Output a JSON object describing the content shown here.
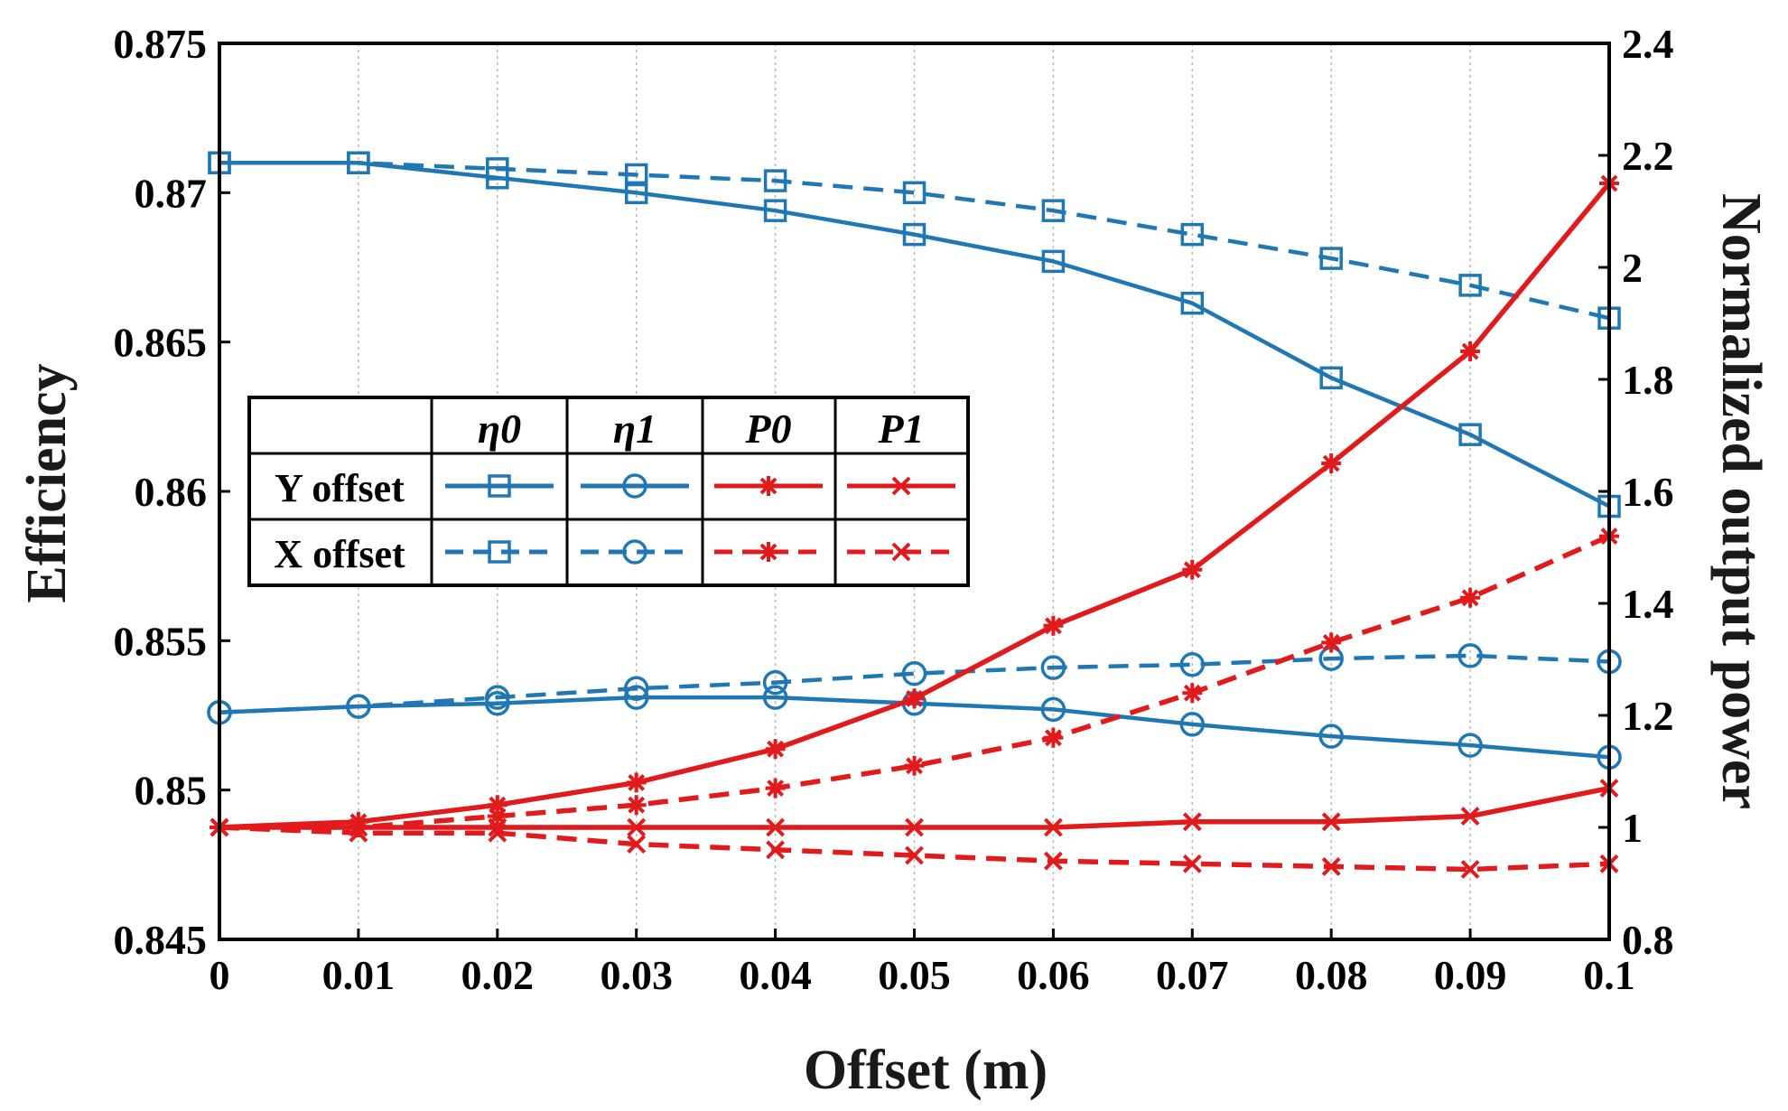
{
  "chart_data": {
    "type": "line",
    "xlabel": "Offset (m)",
    "ylabel_left": "Efficiency",
    "ylabel_right": "Normalized output power",
    "x": [
      0,
      0.01,
      0.02,
      0.03,
      0.04,
      0.05,
      0.06,
      0.07,
      0.08,
      0.09,
      0.1
    ],
    "x_tick_labels": [
      "0",
      "0.01",
      "0.02",
      "0.03",
      "0.04",
      "0.05",
      "0.06",
      "0.07",
      "0.08",
      "0.09",
      "0.1"
    ],
    "xlim": [
      0,
      0.1
    ],
    "ylim_left": [
      0.845,
      0.875
    ],
    "ylim_right": [
      0.8,
      2.4
    ],
    "y_left_tick_labels": [
      "0.845",
      "0.85",
      "0.855",
      "0.86",
      "0.865",
      "0.87",
      "0.875"
    ],
    "y_right_tick_labels": [
      "0.8",
      "1",
      "1.2",
      "1.4",
      "1.6",
      "1.8",
      "2",
      "2.2",
      "2.4"
    ],
    "legend": {
      "position": "center-left",
      "headers": [
        "η0",
        "η1",
        "P0",
        "P1"
      ],
      "row_labels": [
        "Y offset",
        "X offset"
      ]
    },
    "colors": {
      "efficiency": "#1f77b4",
      "power": "#e31a1c"
    },
    "series": [
      {
        "name": "η0 Y offset",
        "axis": "left",
        "style": "solid",
        "marker": "square",
        "values": [
          0.871,
          0.871,
          0.8705,
          0.87,
          0.8694,
          0.8686,
          0.8677,
          0.8663,
          0.8638,
          0.8619,
          0.8595
        ]
      },
      {
        "name": "η0 X offset",
        "axis": "left",
        "style": "dashed",
        "marker": "square",
        "values": [
          0.871,
          0.871,
          0.8708,
          0.8706,
          0.8704,
          0.87,
          0.8694,
          0.8686,
          0.8678,
          0.8669,
          0.8658
        ]
      },
      {
        "name": "η1 Y offset",
        "axis": "left",
        "style": "solid",
        "marker": "circle",
        "values": [
          0.8526,
          0.8528,
          0.8529,
          0.8531,
          0.8531,
          0.8529,
          0.8527,
          0.8522,
          0.8518,
          0.8515,
          0.8511
        ]
      },
      {
        "name": "η1 X offset",
        "axis": "left",
        "style": "dashed",
        "marker": "circle",
        "values": [
          0.8526,
          0.8528,
          0.8531,
          0.8534,
          0.8536,
          0.8539,
          0.8541,
          0.8542,
          0.8544,
          0.8545,
          0.8543
        ]
      },
      {
        "name": "P0 Y offset",
        "axis": "right",
        "style": "solid",
        "marker": "asterisk",
        "values": [
          1.0,
          1.01,
          1.04,
          1.08,
          1.14,
          1.23,
          1.36,
          1.46,
          1.65,
          1.85,
          2.15
        ]
      },
      {
        "name": "P0 X offset",
        "axis": "right",
        "style": "dashed",
        "marker": "asterisk",
        "values": [
          1.0,
          1.0,
          1.02,
          1.04,
          1.07,
          1.11,
          1.16,
          1.24,
          1.33,
          1.41,
          1.52
        ]
      },
      {
        "name": "P1 Y offset",
        "axis": "right",
        "style": "solid",
        "marker": "x",
        "values": [
          1.0,
          1.0,
          1.0,
          1.0,
          1.0,
          1.0,
          1.0,
          1.01,
          1.01,
          1.02,
          1.07
        ]
      },
      {
        "name": "P1 X offset",
        "axis": "right",
        "style": "dashed",
        "marker": "x",
        "values": [
          1.0,
          0.99,
          0.99,
          0.97,
          0.96,
          0.95,
          0.94,
          0.935,
          0.93,
          0.925,
          0.935
        ]
      }
    ]
  }
}
